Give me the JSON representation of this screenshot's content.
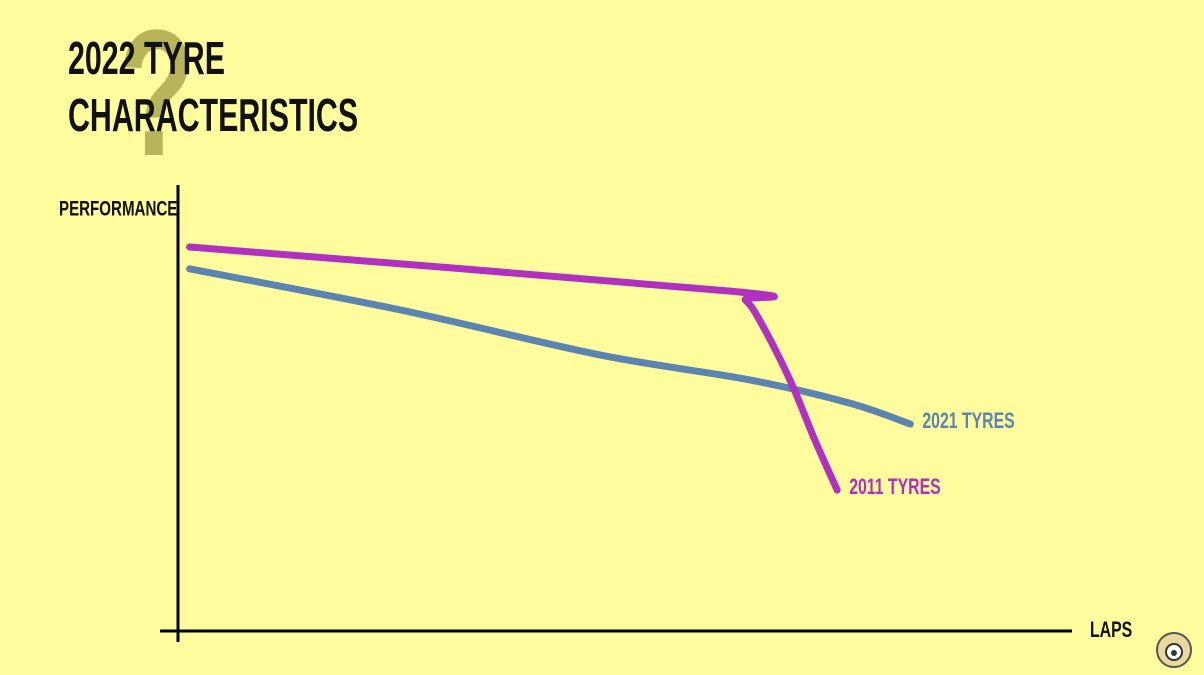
{
  "chart_data": {
    "type": "line",
    "title": "2022 TYRE CHARACTERISTICS",
    "watermark": "?",
    "y_label": "PERFORMANCE",
    "x_label": "LAPS",
    "xlim": [
      0,
      100
    ],
    "ylim": [
      0,
      100
    ],
    "series": [
      {
        "name": "2021 TYRES",
        "color": "#5b84b1",
        "x": [
          1.3,
          24.9,
          47.3,
          64.1,
          75.3,
          82.1
        ],
        "values": [
          81.2,
          72.0,
          61.9,
          56.3,
          51.1,
          46.4
        ]
      },
      {
        "name": "2011 TYRES",
        "color": "#b030c0",
        "x": [
          1.3,
          61.9,
          63.6,
          65.2,
          68.6,
          71.4,
          73.9
        ],
        "values": [
          86.1,
          76.2,
          74.2,
          69.7,
          56.3,
          42.8,
          31.6
        ]
      }
    ]
  }
}
